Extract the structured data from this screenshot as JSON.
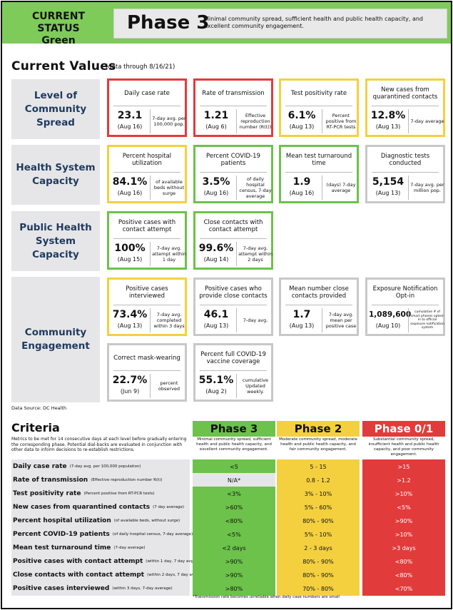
{
  "header": {
    "status_line1": "CURRENT STATUS",
    "status_line2": "Green",
    "phase": "Phase 3",
    "description": "Minimal community spread, sufficient health and public health capacity, and excellent community engagement."
  },
  "current_values": {
    "title": "Current Values",
    "note": "(data through 8/16/21)",
    "groups": {
      "spread": "Level of Community Spread",
      "health": "Health System Capacity",
      "public_health": "Public Health System Capacity",
      "engagement": "Community Engagement"
    },
    "cards": {
      "daily_case_rate": {
        "title": "Daily case rate",
        "value": "23.1",
        "date": "(Aug 16)",
        "desc": "7-day avg. per 100,000 pop.",
        "status": "red"
      },
      "rate_of_transmission": {
        "title": "Rate of transmission",
        "value": "1.21",
        "date": "(Aug 6)",
        "desc": "Effective reproduction number (R(t))",
        "status": "red"
      },
      "test_positivity": {
        "title": "Test positivity rate",
        "value": "6.1%",
        "date": "(Aug 13)",
        "desc": "Percent positive from RT-PCR tests",
        "status": "yellow"
      },
      "new_cases_quarantined": {
        "title": "New cases from quarantined contacts",
        "value": "12.8%",
        "date": "(Aug 13)",
        "desc": "7-day average",
        "status": "yellow"
      },
      "hospital_utilization": {
        "title": "Percent hospital utilization",
        "value": "84.1%",
        "date": "(Aug 16)",
        "desc": "of available beds without surge",
        "status": "yellow"
      },
      "covid_patients": {
        "title": "Percent COVID-19 patients",
        "value": "3.5%",
        "date": "(Aug 16)",
        "desc": "of daily hospital census, 7-day average",
        "status": "green"
      },
      "test_turnaround": {
        "title": "Mean test turnaround time",
        "value": "1.9",
        "date": "(Aug 16)",
        "desc": "(days) 7-day average",
        "status": "green"
      },
      "diagnostic_tests": {
        "title": "Diagnostic tests conducted",
        "value": "5,154",
        "date": "(Aug 13)",
        "desc": "7-day avg. per million pop.",
        "status": "gray"
      },
      "contact_attempt": {
        "title": "Positive cases with contact attempt",
        "value": "100%",
        "date": "(Aug 15)",
        "desc": "7-day avg. attempt within 1 day",
        "status": "green"
      },
      "close_contacts_attempt": {
        "title": "Close contacts with contact attempt",
        "value": "99.6%",
        "date": "(Aug 14)",
        "desc": "7-day avg. attempt within 2 days",
        "status": "green"
      },
      "cases_interviewed": {
        "title": "Positive cases interviewed",
        "value": "73.4%",
        "date": "(Aug 13)",
        "desc": "7-day avg. completed within 3 days",
        "status": "yellow"
      },
      "provide_close_contacts": {
        "title": "Positive cases who provide close contacts",
        "value": "46.1",
        "date": "(Aug 13)",
        "desc": "7-day avg.",
        "status": "gray"
      },
      "mean_close_contacts": {
        "title": "Mean number close contacts provided",
        "value": "1.7",
        "date": "(Aug 13)",
        "desc": "7-day avg. mean per positive case",
        "status": "gray"
      },
      "exposure_notification": {
        "title": "Exposure Notification Opt-in",
        "value": "1,089,600",
        "date": "(Aug 10)",
        "desc": "cumulative # of smart phones opted-in to official exposure notification system",
        "status": "gray"
      },
      "mask_wearing": {
        "title": "Correct mask-wearing",
        "value": "22.7%",
        "date": "(Jun 9)",
        "desc": "percent observed",
        "status": "gray"
      },
      "vaccine_coverage": {
        "title": "Percent full COVID-19 vaccine coverage",
        "value": "55.1%",
        "date": "(Aug 2)",
        "desc": "cumulative Updated weekly.",
        "status": "gray"
      }
    },
    "source": "Data Source: DC Health"
  },
  "criteria": {
    "title": "Criteria",
    "description": "Metrics to be met for 14 consecutive days at each level before gradually entering the corresponding phase. Potential dial-backs are evaluated in conjunction with other data to inform decisions to re-establish restrictions.",
    "phases": [
      {
        "name": "Phase 3",
        "desc": "Minimal community spread, sufficient health and public health capacity, and excellent community engagement.",
        "color": "#6cc24a"
      },
      {
        "name": "Phase 2",
        "desc": "Moderate community spread, moderate health and public health capacity, and fair community engagement.",
        "color": "#f4d03f"
      },
      {
        "name": "Phase 0/1",
        "desc": "Substantial community spread, insufficient health and public health capacity, and poor community engagement.",
        "color": "#e23b3b"
      }
    ],
    "rows": [
      {
        "label": "Daily case rate",
        "qualifier": "(7-day avg. per 100,000 population)",
        "p3": "<5",
        "p2": "5 - 15",
        "p1": ">15"
      },
      {
        "label": "Rate of transmission",
        "qualifier": "(Effective reproduction number R(t))",
        "p3": "N/A*",
        "p2": "0.8 - 1.2",
        "p1": ">1.2"
      },
      {
        "label": "Test positivity rate",
        "qualifier": "(Percent positive from RT-PCR tests)",
        "p3": "<3%",
        "p2": "3% - 10%",
        "p1": ">10%"
      },
      {
        "label": "New cases from quarantined contacts",
        "qualifier": "(7 day average)",
        "p3": ">60%",
        "p2": "5% - 60%",
        "p1": "<5%"
      },
      {
        "label": "Percent hospital utilization",
        "qualifier": "(of available beds, without surge)",
        "p3": "<80%",
        "p2": "80% - 90%",
        "p1": ">90%"
      },
      {
        "label": "Percent COVID-19 patients",
        "qualifier": "(of daily hospital census, 7-day average)",
        "p3": "<5%",
        "p2": "5% - 10%",
        "p1": ">10%"
      },
      {
        "label": "Mean test turnaround time",
        "qualifier": "(7-day average)",
        "p3": "<2 days",
        "p2": "2 - 3 days",
        "p1": ">3 days"
      },
      {
        "label": "Positive cases with contact attempt",
        "qualifier": "(within 1 day, 7 day avg.)",
        "p3": ">90%",
        "p2": "80% - 90%",
        "p1": "<80%"
      },
      {
        "label": "Close contacts with contact attempt",
        "qualifier": "(within 2 days, 7 day avg.)",
        "p3": ">90%",
        "p2": "80% - 90%",
        "p1": "<80%"
      },
      {
        "label": "Positive cases interviewed",
        "qualifier": "(within 3 days, 7-day average)",
        "p3": ">80%",
        "p2": "70% - 80%",
        "p1": "<70%"
      }
    ],
    "footnote": "*Transmission rate becomes unreliable when daily case numbers are small"
  }
}
